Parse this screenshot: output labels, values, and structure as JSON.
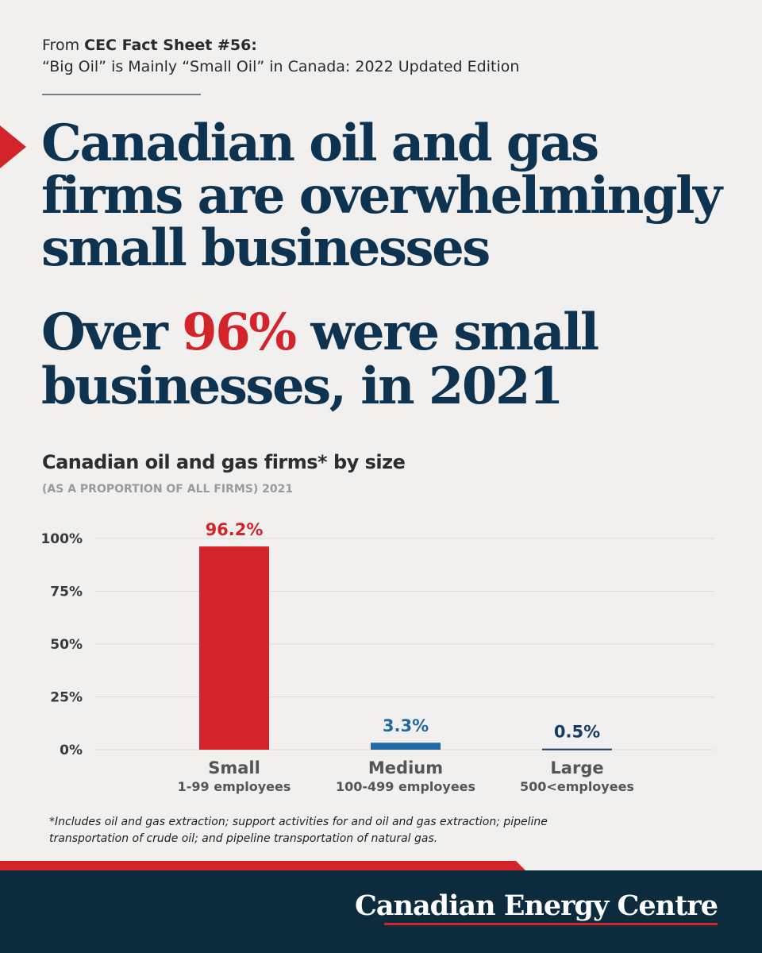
{
  "source": {
    "prefix": "From ",
    "name": "CEC Fact Sheet #56:",
    "title": "“Big Oil” is Mainly “Small Oil” in Canada: 2022 Updated Edition"
  },
  "headline": "Canadian oil and gas firms are overwhelmingly small businesses",
  "subheadline": {
    "before": "Over ",
    "highlight": "96%",
    "after": " were small businesses, in 2021"
  },
  "footnote": "*Includes oil and gas extraction; support activities for and oil and gas extraction; pipeline transportation of crude oil; and pipeline transportation of natural gas.",
  "logo": "Canadian Energy Centre",
  "colors": {
    "navy": "#0e3350",
    "red": "#d3242b",
    "medium_blue": "#1f6aa5",
    "large_navy": "#163a66",
    "footer": "#0c2c3e",
    "background": "#f1f0ee"
  },
  "chart_data": {
    "type": "bar",
    "title": "Canadian oil and gas firms* by size",
    "subtitle": "(AS A PROPORTION OF ALL FIRMS) 2021",
    "categories": [
      "Small",
      "Medium",
      "Large"
    ],
    "category_sublabels": [
      "1-99 employees",
      "100-499 employees",
      "500<employees"
    ],
    "values": [
      96.2,
      3.3,
      0.5
    ],
    "value_labels": [
      "96.2%",
      "3.3%",
      "0.5%"
    ],
    "bar_colors": [
      "#d3242b",
      "#1f6aa5",
      "#163a66"
    ],
    "yticks": [
      "0%",
      "25%",
      "50%",
      "75%",
      "100%"
    ],
    "ylim": [
      0,
      100
    ],
    "grid": true,
    "legend": "none"
  }
}
